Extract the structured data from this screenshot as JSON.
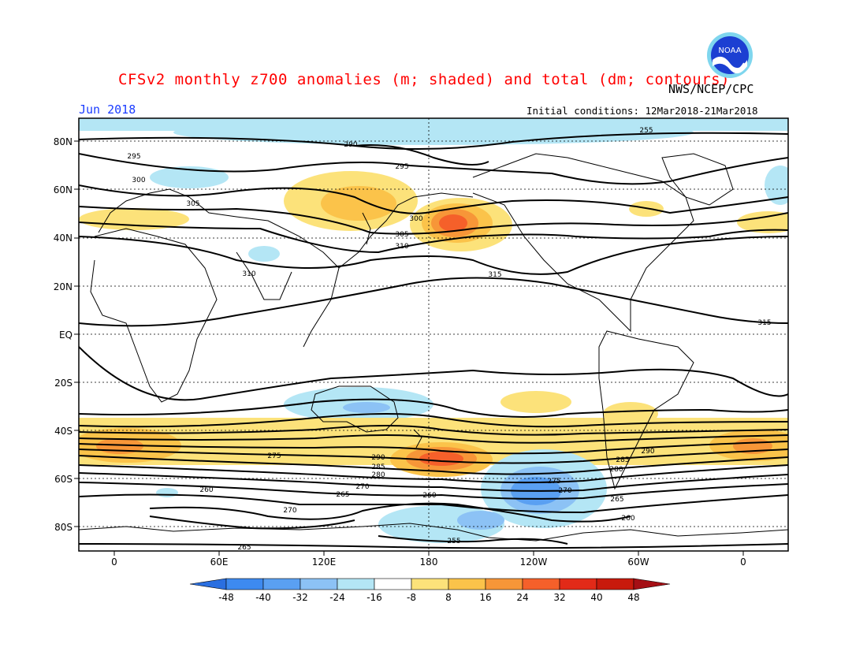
{
  "title": "CFSv2 monthly z700 anomalies (m; shaded) and total (dm; contours)",
  "agency": "NWS/NCEP/CPC",
  "logo_text": "NOAA",
  "month": "Jun 2018",
  "initial_conditions": "Initial conditions: 12Mar2018-21Mar2018",
  "latitude_labels": [
    "80N",
    "60N",
    "40N",
    "20N",
    "EQ",
    "20S",
    "40S",
    "60S",
    "80S"
  ],
  "longitude_labels": [
    "0",
    "60E",
    "120E",
    "180",
    "120W",
    "60W",
    "0"
  ],
  "colorbar": {
    "labels": [
      "-48",
      "-40",
      "-32",
      "-24",
      "-16",
      "-8",
      "8",
      "16",
      "24",
      "32",
      "40",
      "48"
    ],
    "colors": [
      "#2a6fe0",
      "#3d8af0",
      "#5aa0f2",
      "#8cc2f5",
      "#b4e6f5",
      "#ffffff",
      "#fce27a",
      "#fbc34a",
      "#f79638",
      "#f5602a",
      "#e22a18",
      "#c81a0c",
      "#a50f15"
    ]
  },
  "contour_labels": [
    "290",
    "295",
    "300",
    "305",
    "310",
    "315",
    "310",
    "305",
    "300",
    "295",
    "290",
    "285",
    "280",
    "275",
    "270",
    "265",
    "260",
    "255",
    "315",
    "290",
    "285",
    "280",
    "275",
    "270",
    "265",
    "260",
    "255",
    "260",
    "265",
    "270"
  ],
  "colors": {
    "title": "#ff0000",
    "month": "#1a3cff",
    "positive": "#f79638",
    "negative": "#5aa0f2"
  }
}
